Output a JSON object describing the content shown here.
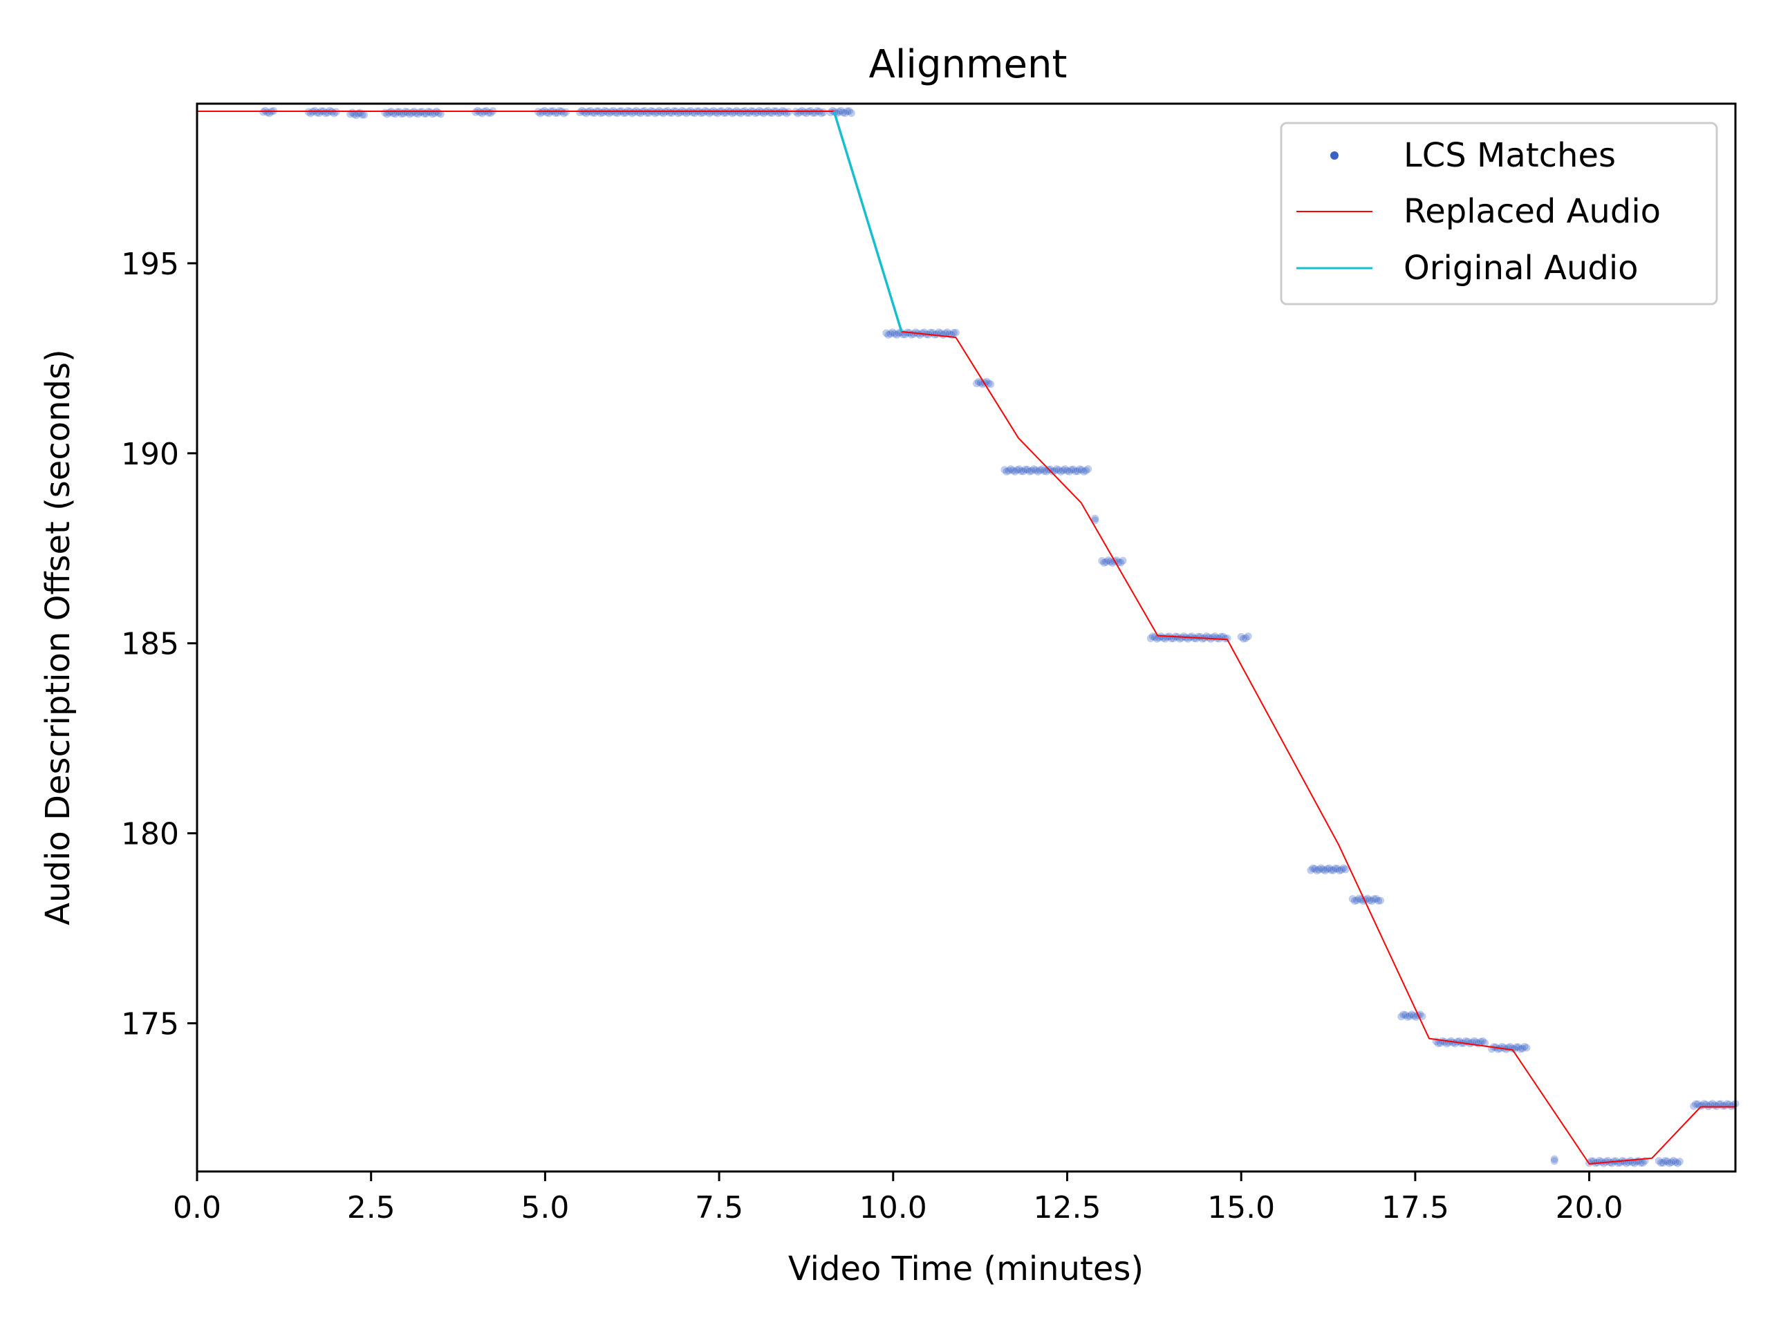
{
  "chart_data": {
    "type": "scatter",
    "title": "Alignment",
    "xlabel": "Video Time (minutes)",
    "ylabel": "Audio Description Offset (seconds)",
    "xlim": [
      0,
      22.1
    ],
    "ylim": [
      171.1,
      199.2
    ],
    "xticks": [
      0.0,
      2.5,
      5.0,
      7.5,
      10.0,
      12.5,
      15.0,
      17.5,
      20.0
    ],
    "xtick_labels": [
      "0.0",
      "2.5",
      "5.0",
      "7.5",
      "10.0",
      "12.5",
      "15.0",
      "17.5",
      "20.0"
    ],
    "yticks": [
      175,
      180,
      185,
      190,
      195
    ],
    "ytick_labels": [
      "175",
      "180",
      "185",
      "190",
      "195"
    ],
    "grid": false,
    "legend_position": "top-right",
    "series": [
      {
        "name": "LCS Matches",
        "kind": "scatter",
        "color": "#3a62c6",
        "clusters": [
          {
            "x": [
              0.95,
              1.1
            ],
            "y": 198.98
          },
          {
            "x": [
              1.6,
              2.0
            ],
            "y": 198.98
          },
          {
            "x": [
              2.2,
              2.4
            ],
            "y": 198.93
          },
          {
            "x": [
              2.7,
              3.5
            ],
            "y": 198.96
          },
          {
            "x": [
              4.0,
              4.25
            ],
            "y": 198.98
          },
          {
            "x": [
              4.9,
              5.3
            ],
            "y": 198.98
          },
          {
            "x": [
              5.5,
              8.5
            ],
            "y": 198.98
          },
          {
            "x": [
              8.6,
              9.0
            ],
            "y": 198.98
          },
          {
            "x": [
              9.1,
              9.4
            ],
            "y": 198.98
          },
          {
            "x": [
              9.9,
              10.9
            ],
            "y": 193.15
          },
          {
            "x": [
              11.2,
              11.4
            ],
            "y": 191.85
          },
          {
            "x": [
              11.6,
              12.8
            ],
            "y": 189.55
          },
          {
            "x": [
              12.9,
              12.9
            ],
            "y": 188.25
          },
          {
            "x": [
              13.0,
              13.3
            ],
            "y": 187.15
          },
          {
            "x": [
              13.7,
              14.8
            ],
            "y": 185.15
          },
          {
            "x": [
              15.0,
              15.1
            ],
            "y": 185.15
          },
          {
            "x": [
              16.0,
              16.5
            ],
            "y": 179.05
          },
          {
            "x": [
              16.6,
              17.0
            ],
            "y": 178.25
          },
          {
            "x": [
              17.3,
              17.6
            ],
            "y": 175.2
          },
          {
            "x": [
              17.8,
              18.5
            ],
            "y": 174.5
          },
          {
            "x": [
              18.6,
              19.1
            ],
            "y": 174.35
          },
          {
            "x": [
              19.5,
              19.5
            ],
            "y": 171.4
          },
          {
            "x": [
              20.0,
              20.8
            ],
            "y": 171.35
          },
          {
            "x": [
              21.0,
              21.3
            ],
            "y": 171.35
          },
          {
            "x": [
              21.5,
              22.1
            ],
            "y": 172.85
          }
        ]
      },
      {
        "name": "Replaced Audio",
        "kind": "line",
        "color": "#ff0000",
        "x": [
          0.0,
          9.15,
          10.12,
          10.9,
          11.8,
          12.7,
          13.8,
          14.8,
          16.4,
          17.7,
          18.9,
          20.0,
          20.9,
          21.6,
          22.1
        ],
        "y": [
          199.0,
          199.0,
          193.2,
          193.05,
          190.4,
          188.7,
          185.2,
          185.1,
          179.7,
          174.6,
          174.3,
          171.3,
          171.45,
          172.8,
          172.8
        ]
      },
      {
        "name": "Original Audio",
        "kind": "line",
        "color": "#17becf",
        "x": [
          9.15,
          10.12
        ],
        "y": [
          199.0,
          193.2
        ]
      }
    ]
  }
}
